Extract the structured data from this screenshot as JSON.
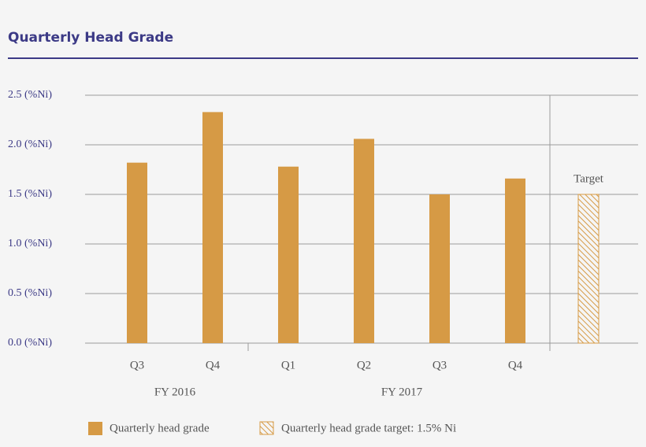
{
  "chart_data": {
    "type": "bar",
    "title": "Quarterly Head Grade",
    "groups": [
      {
        "label": "FY 2016",
        "categories": [
          "Q3",
          "Q4"
        ],
        "values": [
          1.82,
          2.33
        ]
      },
      {
        "label": "FY 2017",
        "categories": [
          "Q1",
          "Q2",
          "Q3",
          "Q4"
        ],
        "values": [
          1.78,
          2.06,
          1.5,
          1.66
        ]
      }
    ],
    "series_name": "Quarterly head grade",
    "color": "#d69a45",
    "target": {
      "label": "Target",
      "value": 1.5,
      "legend": "Quarterly head grade target: 1.5% Ni"
    },
    "ylim": [
      0,
      2.5
    ],
    "yticks": [
      {
        "value": 0,
        "label": "0.0 (%Ni)"
      },
      {
        "value": 0.5,
        "label": "0.5 (%Ni)"
      },
      {
        "value": 1,
        "label": "1.0 (%Ni)"
      },
      {
        "value": 1.5,
        "label": "1.5 (%Ni)"
      },
      {
        "value": 2,
        "label": "2.0 (%Ni)"
      },
      {
        "value": 2.5,
        "label": "2.5 (%Ni)"
      }
    ],
    "grid": true
  }
}
